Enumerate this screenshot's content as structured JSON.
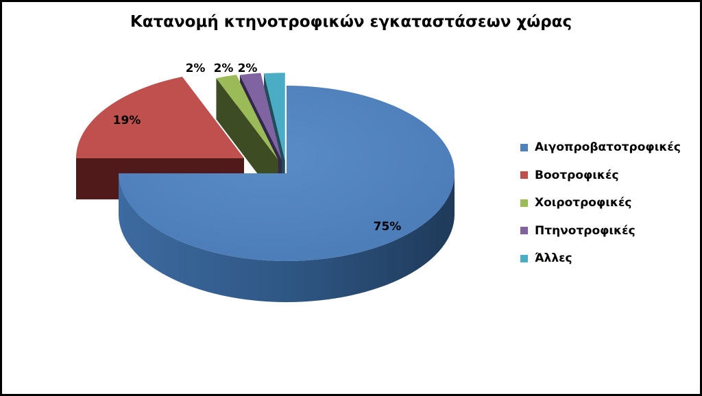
{
  "chart_data": {
    "type": "pie",
    "style": "3d-exploded",
    "title": "Κατανομή κτηνοτροφικών εγκαταστάσεων χώρας",
    "labels": [
      "Αιγοπροβατοτροφικές",
      "Βοοτροφικές",
      "Χοιροτροφικές",
      "Πτηνοτροφικές",
      "Άλλες"
    ],
    "values": [
      75,
      19,
      2,
      2,
      2
    ],
    "data_labels": [
      "75%",
      "19%",
      "2%",
      "2%",
      "2%"
    ],
    "colors": [
      "#4F81BD",
      "#C0504D",
      "#9BBB59",
      "#8064A2",
      "#4BACC6"
    ],
    "legend_position": "right"
  }
}
